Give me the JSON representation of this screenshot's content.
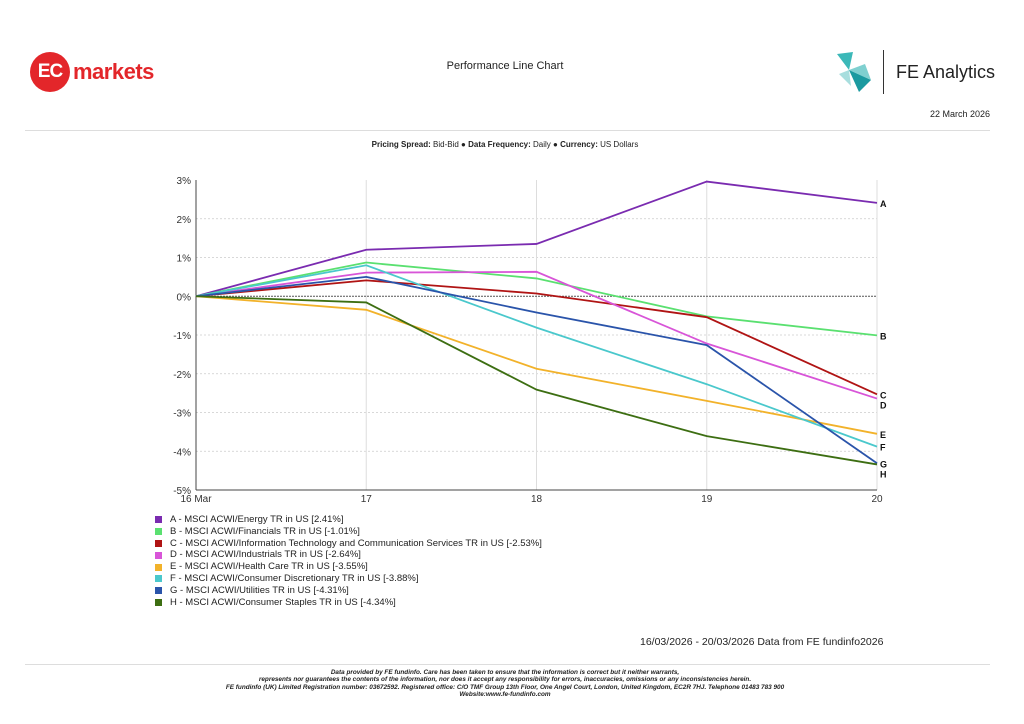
{
  "header": {
    "logo_ec_mark": "EC",
    "logo_ec_word": "markets",
    "title": "Performance Line Chart",
    "logo_fe": "FE Analytics",
    "date": "22 March 2026"
  },
  "subtitle": {
    "k1": "Pricing Spread:",
    "v1": " Bid-Bid ● ",
    "k2": "Data Frequency:",
    "v2": " Daily ● ",
    "k3": "Currency:",
    "v3": " US Dollars"
  },
  "chart_data": {
    "type": "line",
    "title": "Performance Line Chart",
    "xlabel": "",
    "ylabel": "",
    "x": [
      "16 Mar",
      "17",
      "18",
      "19",
      "20"
    ],
    "yticks": [
      "3%",
      "2%",
      "1%",
      "0%",
      "-1%",
      "-2%",
      "-3%",
      "-4%",
      "-5%"
    ],
    "ylim": [
      -5,
      3
    ],
    "grid": true,
    "legend_placement": "bottom-left",
    "series": [
      {
        "key": "A",
        "name": "A - MSCI ACWI/Energy TR in US [2.41%]",
        "color": "#7a2bb0",
        "values": [
          0,
          1.2,
          1.35,
          2.96,
          2.41
        ]
      },
      {
        "key": "B",
        "name": "B - MSCI ACWI/Financials TR in US [-1.01%]",
        "color": "#5ae070",
        "values": [
          0,
          0.87,
          0.46,
          -0.52,
          -1.01
        ]
      },
      {
        "key": "C",
        "name": "C - MSCI ACWI/Information Technology and Communication Services TR in US [-2.53%]",
        "color": "#b01414",
        "values": [
          0,
          0.41,
          0.07,
          -0.54,
          -2.53
        ]
      },
      {
        "key": "D",
        "name": "D - MSCI ACWI/Industrials TR in US [-2.64%]",
        "color": "#d855d8",
        "values": [
          0,
          0.61,
          0.63,
          -1.22,
          -2.64
        ]
      },
      {
        "key": "E",
        "name": "E - MSCI ACWI/Health Care TR in US [-3.55%]",
        "color": "#f2b22a",
        "values": [
          0,
          -0.35,
          -1.87,
          -2.7,
          -3.55
        ]
      },
      {
        "key": "F",
        "name": "F - MSCI ACWI/Consumer Discretionary TR in US [-3.88%]",
        "color": "#4ac8cc",
        "values": [
          0,
          0.8,
          -0.81,
          -2.27,
          -3.88
        ]
      },
      {
        "key": "G",
        "name": "G - MSCI ACWI/Utilities TR in US [-4.31%]",
        "color": "#2a54aa",
        "values": [
          0,
          0.5,
          -0.42,
          -1.26,
          -4.31
        ]
      },
      {
        "key": "H",
        "name": "H - MSCI ACWI/Consumer Staples TR in US [-4.34%]",
        "color": "#3d6e12",
        "values": [
          0,
          -0.16,
          -2.41,
          -3.61,
          -4.34
        ]
      }
    ]
  },
  "range_note": "16/03/2026 - 20/03/2026 Data from FE fundinfo2026",
  "footer": [
    "Data provided by FE fundinfo. Care has been taken to ensure that the information is correct but it neither warrants,",
    "represents nor guarantees the contents of the information, nor does it accept any responsibility for errors, inaccuracies, omissions or any inconsistencies herein.",
    "FE fundinfo (UK) Limited Registration number: 03672592. Registered office: C/O TMF Group 13th Floor, One Angel Court, London, United Kingdom, EC2R 7HJ. Telephone 01483 783 900",
    "Website:www.fe-fundinfo.com"
  ]
}
